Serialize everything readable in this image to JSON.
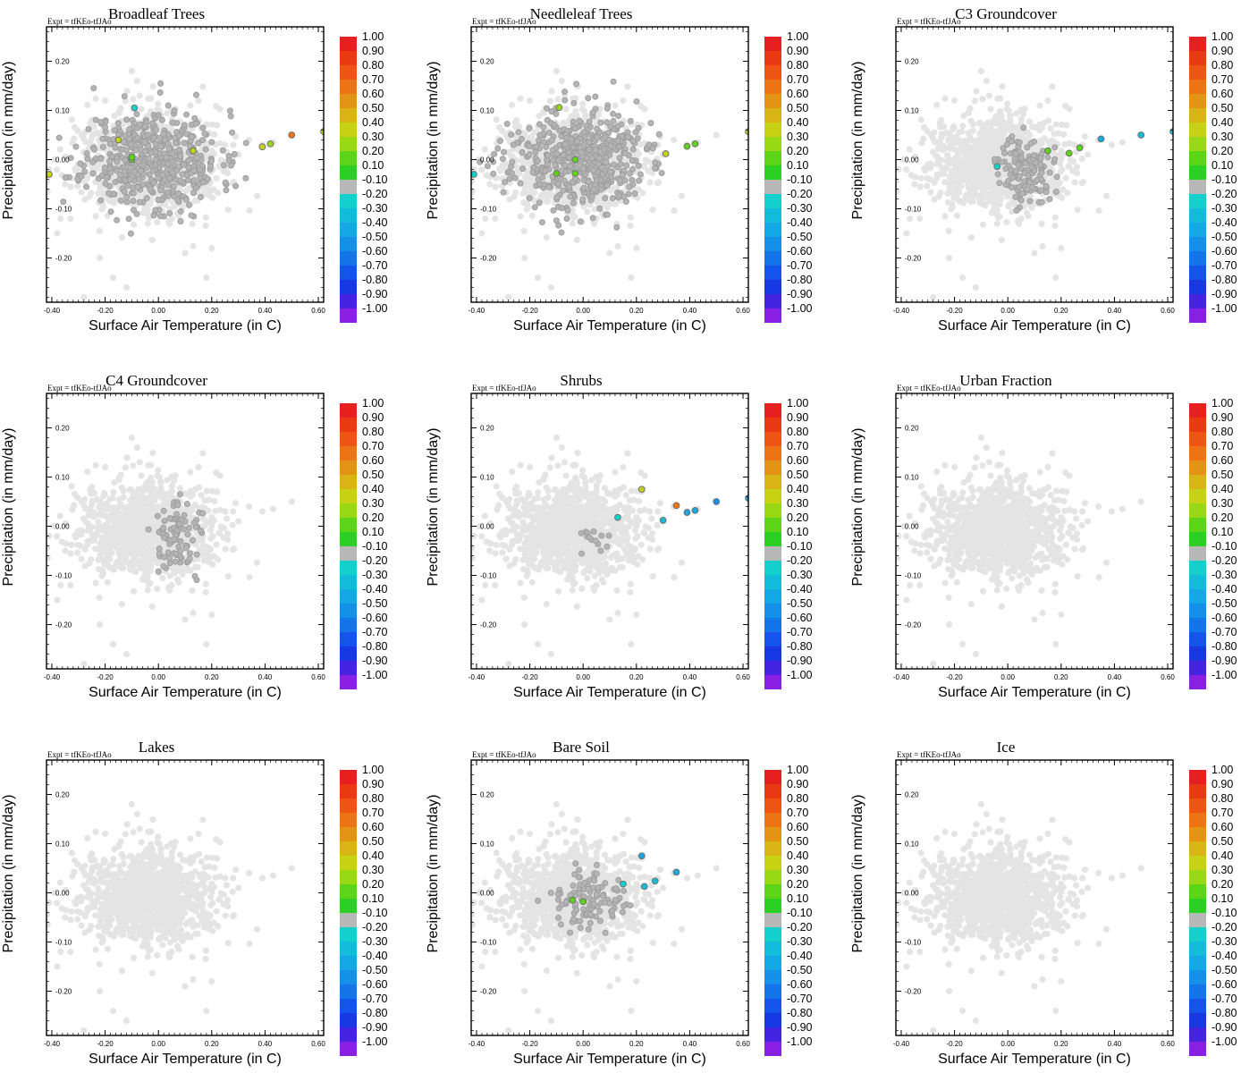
{
  "experiment_label": "Expt = tfKEo-tfJAo",
  "chart_data": {
    "type": "scatter",
    "xlabel": "Surface Air Temperature (in C)",
    "ylabel": "Precipitation (in mm/day)",
    "xlim": [
      -0.42,
      0.62
    ],
    "ylim": [
      -0.29,
      0.27
    ],
    "xticks": [
      -0.4,
      -0.2,
      0.0,
      0.2,
      0.4,
      0.6
    ],
    "xtick_labels": [
      "-0.40",
      "-0.20",
      "0.00",
      "0.20",
      "0.40",
      "0.60"
    ],
    "yticks": [
      -0.2,
      -0.1,
      0.0,
      0.1,
      0.2
    ],
    "ytick_labels": [
      "-0.20",
      "-0.10",
      "0.00",
      "0.10",
      "0.20"
    ],
    "background_point_color": "#e4e4e4",
    "neutral_point_color": "#b4b4b4",
    "colorbar": {
      "labels": [
        "1.00",
        "0.90",
        "0.80",
        "0.70",
        "0.60",
        "0.50",
        "0.40",
        "0.30",
        "0.20",
        "0.10",
        "-0.10",
        "-0.20",
        "-0.30",
        "-0.40",
        "-0.50",
        "-0.60",
        "-0.70",
        "-0.80",
        "-0.90",
        "-1.00"
      ],
      "colors": [
        "#e62020",
        "#ea3a14",
        "#ee5514",
        "#ec7414",
        "#e49414",
        "#d8b414",
        "#c8d214",
        "#98d814",
        "#5cd418",
        "#2cd024",
        "#b8b8b8",
        "#14d0cc",
        "#14bcdc",
        "#14a8e4",
        "#1490e8",
        "#1474ea",
        "#1454ea",
        "#1838e4",
        "#4424e0",
        "#8a20e4"
      ]
    },
    "highlight_outline": "#707070",
    "panels": [
      {
        "title": "Broadleaf Trees",
        "dark_cloud": [
          {
            "cx": -0.02,
            "cy": 0.0,
            "rx": 0.25,
            "ry": 0.1,
            "n": 520,
            "seed": 11
          }
        ],
        "colored_points": [
          {
            "x": -0.41,
            "y": -0.03,
            "value": 0.3
          },
          {
            "x": -0.15,
            "y": 0.04,
            "value": 0.35
          },
          {
            "x": -0.1,
            "y": 0.0,
            "value": 0.15
          },
          {
            "x": -0.1,
            "y": 0.005,
            "value": 0.18
          },
          {
            "x": -0.09,
            "y": 0.105,
            "value": -0.2
          },
          {
            "x": 0.13,
            "y": 0.018,
            "value": 0.3
          },
          {
            "x": 0.39,
            "y": 0.026,
            "value": 0.3
          },
          {
            "x": 0.42,
            "y": 0.032,
            "value": 0.25
          },
          {
            "x": 0.5,
            "y": 0.05,
            "value": 0.6
          },
          {
            "x": 0.62,
            "y": 0.057,
            "value": 0.3
          }
        ]
      },
      {
        "title": "Needleleaf Trees",
        "dark_cloud": [
          {
            "cx": -0.02,
            "cy": 0.0,
            "rx": 0.25,
            "ry": 0.1,
            "n": 520,
            "seed": 23
          }
        ],
        "colored_points": [
          {
            "x": -0.41,
            "y": -0.03,
            "value": -0.2
          },
          {
            "x": -0.09,
            "y": 0.106,
            "value": 0.2
          },
          {
            "x": -0.1,
            "y": -0.028,
            "value": 0.15
          },
          {
            "x": -0.03,
            "y": 0.0,
            "value": 0.15
          },
          {
            "x": -0.03,
            "y": -0.028,
            "value": 0.18
          },
          {
            "x": 0.31,
            "y": 0.012,
            "value": 0.3
          },
          {
            "x": 0.39,
            "y": 0.027,
            "value": 0.15
          },
          {
            "x": 0.42,
            "y": 0.032,
            "value": 0.18
          },
          {
            "x": 0.62,
            "y": 0.057,
            "value": 0.3
          }
        ]
      },
      {
        "title": "C3 Groundcover",
        "dark_cloud": [
          {
            "cx": 0.07,
            "cy": -0.02,
            "rx": 0.1,
            "ry": 0.07,
            "n": 130,
            "seed": 37
          }
        ],
        "colored_points": [
          {
            "x": -0.04,
            "y": -0.014,
            "value": -0.2
          },
          {
            "x": 0.15,
            "y": 0.018,
            "value": 0.18
          },
          {
            "x": 0.23,
            "y": 0.013,
            "value": 0.15
          },
          {
            "x": 0.27,
            "y": 0.024,
            "value": 0.15
          },
          {
            "x": 0.35,
            "y": 0.042,
            "value": -0.4
          },
          {
            "x": 0.5,
            "y": 0.05,
            "value": -0.25
          },
          {
            "x": 0.62,
            "y": 0.057,
            "value": -0.3
          }
        ]
      },
      {
        "title": "C4 Groundcover",
        "dark_cloud": [
          {
            "cx": 0.08,
            "cy": -0.02,
            "rx": 0.1,
            "ry": 0.07,
            "n": 90,
            "seed": 41
          }
        ],
        "colored_points": []
      },
      {
        "title": "Shrubs",
        "dark_cloud": [
          {
            "cx": 0.04,
            "cy": -0.02,
            "rx": 0.07,
            "ry": 0.03,
            "n": 14,
            "seed": 53
          }
        ],
        "colored_points": [
          {
            "x": 0.13,
            "y": 0.018,
            "value": -0.2
          },
          {
            "x": 0.22,
            "y": 0.075,
            "value": 0.35
          },
          {
            "x": 0.3,
            "y": 0.012,
            "value": -0.25
          },
          {
            "x": 0.35,
            "y": 0.042,
            "value": 0.6
          },
          {
            "x": 0.39,
            "y": 0.028,
            "value": -0.4
          },
          {
            "x": 0.42,
            "y": 0.032,
            "value": -0.4
          },
          {
            "x": 0.5,
            "y": 0.05,
            "value": -0.45
          },
          {
            "x": 0.62,
            "y": 0.057,
            "value": -0.35
          }
        ]
      },
      {
        "title": "Urban Fraction",
        "dark_cloud": [],
        "colored_points": []
      },
      {
        "title": "Lakes",
        "dark_cloud": [],
        "colored_points": []
      },
      {
        "title": "Bare Soil",
        "dark_cloud": [
          {
            "cx": 0.02,
            "cy": -0.02,
            "rx": 0.13,
            "ry": 0.06,
            "n": 110,
            "seed": 67
          }
        ],
        "colored_points": [
          {
            "x": -0.04,
            "y": -0.015,
            "value": 0.15
          },
          {
            "x": 0.0,
            "y": -0.018,
            "value": 0.18
          },
          {
            "x": 0.15,
            "y": 0.018,
            "value": -0.2
          },
          {
            "x": 0.22,
            "y": 0.075,
            "value": -0.35
          },
          {
            "x": 0.23,
            "y": 0.013,
            "value": -0.25
          },
          {
            "x": 0.27,
            "y": 0.024,
            "value": -0.3
          },
          {
            "x": 0.35,
            "y": 0.042,
            "value": -0.4
          }
        ]
      },
      {
        "title": "Ice",
        "dark_cloud": [],
        "colored_points": []
      }
    ]
  }
}
